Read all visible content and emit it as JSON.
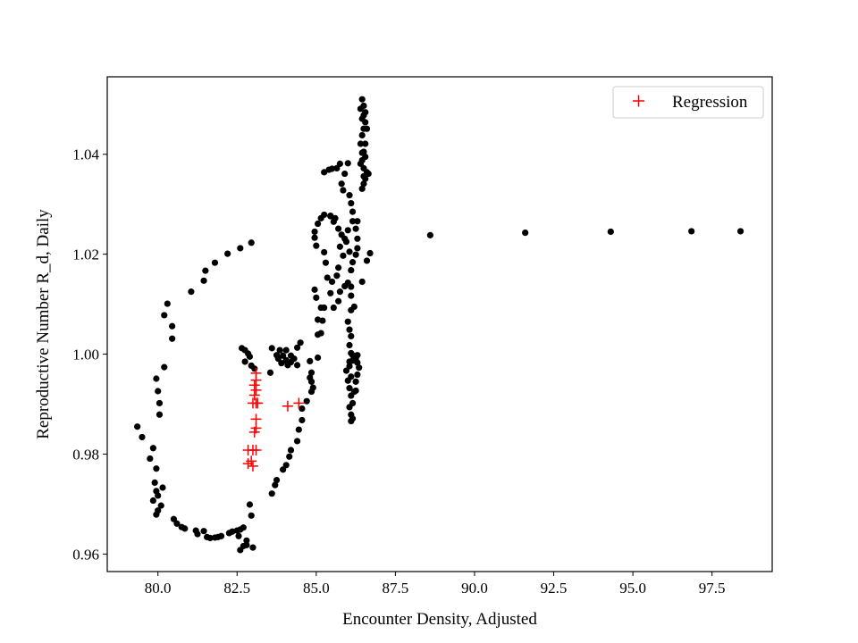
{
  "chart_data": {
    "type": "scatter",
    "title": "",
    "xlabel": "Encounter Density, Adjusted",
    "ylabel": "Reproductive Number R_d, Daily",
    "xlim": [
      78.4,
      99.4
    ],
    "ylim": [
      0.9565,
      1.0555
    ],
    "xticks": [
      80.0,
      82.5,
      85.0,
      87.5,
      90.0,
      92.5,
      95.0,
      97.5
    ],
    "xtick_labels": [
      "80.0",
      "82.5",
      "85.0",
      "87.5",
      "90.0",
      "92.5",
      "95.0",
      "97.5"
    ],
    "yticks": [
      0.96,
      0.98,
      1.0,
      1.02,
      1.04
    ],
    "ytick_labels": [
      "0.96",
      "0.98",
      "1.00",
      "1.02",
      "1.04"
    ],
    "grid": false,
    "legend": {
      "position": "top-right",
      "entries": [
        "Regression"
      ]
    },
    "series": [
      {
        "color": "#000000",
        "marker": "circle",
        "points": [
          [
            82.95,
            1.0223
          ],
          [
            82.6,
            1.0212
          ],
          [
            82.2,
            1.0201
          ],
          [
            81.8,
            1.0183
          ],
          [
            81.5,
            1.0167
          ],
          [
            81.45,
            1.0147
          ],
          [
            81.05,
            1.0125
          ],
          [
            80.3,
            1.0101
          ],
          [
            80.2,
            1.0078
          ],
          [
            80.45,
            1.0056
          ],
          [
            80.45,
            1.0031
          ],
          [
            80.2,
            0.9974
          ],
          [
            79.95,
            0.9951
          ],
          [
            80.0,
            0.9926
          ],
          [
            80.05,
            0.9902
          ],
          [
            80.05,
            0.9879
          ],
          [
            79.35,
            0.9855
          ],
          [
            79.5,
            0.9834
          ],
          [
            79.85,
            0.9812
          ],
          [
            79.75,
            0.9791
          ],
          [
            79.95,
            0.9771
          ],
          [
            79.9,
            0.9743
          ],
          [
            80.15,
            0.9733
          ],
          [
            79.95,
            0.9726
          ],
          [
            80.0,
            0.9717
          ],
          [
            79.85,
            0.9707
          ],
          [
            80.1,
            0.9697
          ],
          [
            80.0,
            0.9687
          ],
          [
            79.95,
            0.9679
          ],
          [
            80.5,
            0.967
          ],
          [
            80.6,
            0.9661
          ],
          [
            80.75,
            0.9654
          ],
          [
            80.85,
            0.9651
          ],
          [
            81.2,
            0.9647
          ],
          [
            81.25,
            0.964
          ],
          [
            81.45,
            0.9646
          ],
          [
            81.55,
            0.9634
          ],
          [
            81.65,
            0.9632
          ],
          [
            81.8,
            0.9633
          ],
          [
            81.9,
            0.9634
          ],
          [
            82.0,
            0.9636
          ],
          [
            82.25,
            0.9642
          ],
          [
            82.35,
            0.9645
          ],
          [
            82.5,
            0.9647
          ],
          [
            82.6,
            0.9649
          ],
          [
            82.7,
            0.9653
          ],
          [
            82.55,
            0.9636
          ],
          [
            82.8,
            0.9627
          ],
          [
            82.7,
            0.9616
          ],
          [
            82.6,
            0.9608
          ],
          [
            82.8,
            0.9618
          ],
          [
            83.0,
            0.9613
          ],
          [
            82.95,
            0.9677
          ],
          [
            82.9,
            0.9699
          ],
          [
            82.65,
            1.0012
          ],
          [
            82.75,
            1.0008
          ],
          [
            82.85,
            1.0001
          ],
          [
            82.9,
            0.9995
          ],
          [
            82.75,
            0.9985
          ],
          [
            82.95,
            0.9977
          ],
          [
            83.05,
            0.9971
          ],
          [
            83.6,
            0.9721
          ],
          [
            83.7,
            0.9738
          ],
          [
            83.75,
            0.9748
          ],
          [
            83.95,
            0.9769
          ],
          [
            84.05,
            0.9778
          ],
          [
            84.15,
            0.9795
          ],
          [
            84.2,
            0.9808
          ],
          [
            84.4,
            0.9826
          ],
          [
            84.45,
            0.9849
          ],
          [
            84.55,
            0.9868
          ],
          [
            84.55,
            0.9891
          ],
          [
            84.7,
            0.9906
          ],
          [
            84.85,
            0.9925
          ],
          [
            84.9,
            0.9933
          ],
          [
            84.85,
            0.9945
          ],
          [
            84.8,
            0.9953
          ],
          [
            84.85,
            0.9963
          ],
          [
            84.8,
            0.9986
          ],
          [
            85.05,
            0.9993
          ],
          [
            85.05,
            1.0039
          ],
          [
            85.15,
            1.0042
          ],
          [
            85.2,
            1.0067
          ],
          [
            85.05,
            1.0069
          ],
          [
            85.15,
            1.0093
          ],
          [
            85.0,
            1.0113
          ],
          [
            84.95,
            1.0129
          ],
          [
            85.35,
            1.0153
          ],
          [
            85.3,
            1.0183
          ],
          [
            85.25,
            1.0204
          ],
          [
            85.0,
            1.0217
          ],
          [
            84.95,
            1.0233
          ],
          [
            84.95,
            1.0245
          ],
          [
            85.05,
            1.0261
          ],
          [
            85.15,
            1.0272
          ],
          [
            85.25,
            1.0279
          ],
          [
            85.45,
            1.0276
          ],
          [
            85.55,
            1.0265
          ],
          [
            85.45,
            1.0277
          ],
          [
            85.6,
            1.0272
          ],
          [
            85.7,
            1.0251
          ],
          [
            85.8,
            1.0239
          ],
          [
            85.9,
            1.0231
          ],
          [
            85.75,
            1.0215
          ],
          [
            85.85,
            1.0197
          ],
          [
            85.7,
            1.0173
          ],
          [
            85.65,
            1.0157
          ],
          [
            85.5,
            1.0145
          ],
          [
            85.45,
            1.0122
          ],
          [
            85.55,
            1.0093
          ],
          [
            85.25,
            1.0093
          ],
          [
            85.7,
            1.0106
          ],
          [
            85.75,
            1.0125
          ],
          [
            85.9,
            1.0136
          ],
          [
            86.0,
            1.0143
          ],
          [
            86.1,
            1.0168
          ],
          [
            86.15,
            1.0184
          ],
          [
            86.25,
            1.0199
          ],
          [
            86.3,
            1.0212
          ],
          [
            86.3,
            1.0231
          ],
          [
            86.25,
            1.0251
          ],
          [
            86.3,
            1.0266
          ],
          [
            86.15,
            1.0285
          ],
          [
            86.1,
            1.0302
          ],
          [
            86.05,
            1.0318
          ],
          [
            85.85,
            1.0328
          ],
          [
            85.8,
            1.0341
          ],
          [
            85.9,
            1.0361
          ],
          [
            85.65,
            1.0372
          ],
          [
            85.75,
            1.0381
          ],
          [
            85.5,
            1.0371
          ],
          [
            85.4,
            1.0369
          ],
          [
            85.25,
            1.0364
          ],
          [
            86.0,
            1.0382
          ],
          [
            86.15,
            1.0266
          ],
          [
            86.0,
            1.0248
          ],
          [
            85.95,
            1.0225
          ],
          [
            86.05,
            1.0205
          ],
          [
            86.1,
            1.0135
          ],
          [
            86.1,
            1.0117
          ],
          [
            86.2,
            1.0095
          ],
          [
            86.1,
            1.0088
          ],
          [
            86.0,
            1.0065
          ],
          [
            86.05,
            1.0049
          ],
          [
            86.1,
            1.0036
          ],
          [
            86.05,
            1.0018
          ],
          [
            86.1,
            1.0002
          ],
          [
            86.15,
            0.9987
          ],
          [
            86.05,
            0.9976
          ],
          [
            86.1,
            0.9955
          ],
          [
            86.2,
            0.9925
          ],
          [
            86.15,
            0.9902
          ],
          [
            86.05,
            0.9894
          ],
          [
            86.1,
            0.9879
          ],
          [
            86.15,
            0.9871
          ],
          [
            86.1,
            0.9866
          ],
          [
            85.95,
            0.9967
          ],
          [
            86.0,
            0.9947
          ],
          [
            86.05,
            0.9932
          ],
          [
            86.1,
            0.9917
          ],
          [
            86.25,
            0.9927
          ],
          [
            86.25,
            0.9945
          ],
          [
            86.3,
            0.9959
          ],
          [
            86.35,
            0.9973
          ],
          [
            86.3,
            0.9983
          ],
          [
            86.25,
            0.9991
          ],
          [
            86.15,
            0.9998
          ],
          [
            86.05,
            0.9985
          ],
          [
            86.3,
            0.9998
          ],
          [
            83.6,
            1.0012
          ],
          [
            83.75,
            0.9998
          ],
          [
            83.85,
            1.0008
          ],
          [
            83.95,
            0.9997
          ],
          [
            84.05,
            0.9988
          ],
          [
            84.1,
            0.9981
          ],
          [
            84.2,
            0.9984
          ],
          [
            84.3,
            0.9991
          ],
          [
            84.4,
            1.0013
          ],
          [
            84.5,
            1.0023
          ],
          [
            84.2,
            0.9997
          ],
          [
            83.9,
            0.9982
          ],
          [
            84.1,
            0.9978
          ],
          [
            83.8,
            0.9991
          ],
          [
            84.05,
            1.0008
          ],
          [
            84.4,
            0.9978
          ],
          [
            83.55,
            0.9963
          ],
          [
            86.45,
            1.051
          ],
          [
            86.5,
            1.0497
          ],
          [
            86.4,
            1.0491
          ],
          [
            86.55,
            1.0484
          ],
          [
            86.5,
            1.0478
          ],
          [
            86.45,
            1.0471
          ],
          [
            86.55,
            1.0464
          ],
          [
            86.5,
            1.0451
          ],
          [
            86.45,
            1.0438
          ],
          [
            86.55,
            1.0421
          ],
          [
            86.5,
            1.0405
          ],
          [
            86.45,
            1.0388
          ],
          [
            86.4,
            1.0381
          ],
          [
            86.5,
            1.0372
          ],
          [
            86.6,
            1.0364
          ],
          [
            86.55,
            1.0351
          ],
          [
            86.5,
            1.0341
          ],
          [
            86.45,
            1.0331
          ],
          [
            86.55,
            1.0395
          ],
          [
            86.4,
            1.0421
          ],
          [
            86.65,
            1.0361
          ],
          [
            86.6,
            1.0451
          ],
          [
            86.45,
            1.0403
          ],
          [
            86.5,
            1.0356
          ],
          [
            86.7,
            1.0202
          ],
          [
            86.6,
            1.0187
          ],
          [
            86.45,
            1.0145
          ],
          [
            88.6,
            1.0238
          ],
          [
            91.6,
            1.0243
          ],
          [
            94.3,
            1.0245
          ],
          [
            96.85,
            1.0246
          ],
          [
            98.4,
            1.0246
          ]
        ]
      },
      {
        "name": "Regression",
        "color": "#ff0000",
        "marker": "plus",
        "points": [
          [
            83.1,
            0.9962
          ],
          [
            83.1,
            0.9948
          ],
          [
            83.05,
            0.9938
          ],
          [
            83.1,
            0.9928
          ],
          [
            83.05,
            0.9918
          ],
          [
            83.1,
            0.9902
          ],
          [
            83.15,
            0.9902
          ],
          [
            83.0,
            0.9902
          ],
          [
            83.1,
            0.987
          ],
          [
            83.1,
            0.9852
          ],
          [
            83.05,
            0.9844
          ],
          [
            82.85,
            0.9808
          ],
          [
            83.1,
            0.9808
          ],
          [
            83.0,
            0.9808
          ],
          [
            82.85,
            0.9781
          ],
          [
            83.0,
            0.9776
          ],
          [
            82.95,
            0.9786
          ],
          [
            84.1,
            0.9896
          ],
          [
            84.45,
            0.9902
          ]
        ]
      }
    ]
  }
}
